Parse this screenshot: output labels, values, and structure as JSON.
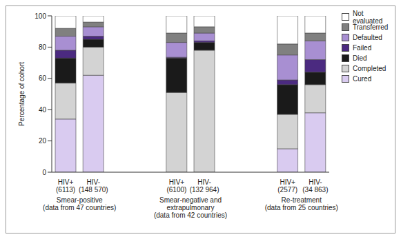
{
  "chart_data": {
    "type": "bar",
    "stacked": true,
    "y_label": "Percentage of cohort",
    "ylim": [
      0,
      100
    ],
    "yticks": [
      0,
      20,
      40,
      60,
      80,
      100
    ],
    "grid": false,
    "legend": "right",
    "categories": [
      "HIV+ (6113)",
      "HIV- (148 570)",
      null,
      null,
      "HIV+ (6100)",
      "HIV- (132 964)",
      null,
      null,
      "HIV+ (2577)",
      "HIV- (34 863)"
    ],
    "group_labels": [
      "Smear-positive\n(data from 47 countries)",
      "Smear-negative and\nextrapulmonary\n(data from 42 countries)",
      "Re-treatment\n(data from 25 countries)"
    ],
    "series": [
      {
        "name": "Cured",
        "color": "#d9cbf0",
        "values": [
          34,
          62,
          null,
          null,
          0,
          0,
          null,
          null,
          15,
          38
        ]
      },
      {
        "name": "Completed",
        "color": "#d3d3d3",
        "values": [
          23,
          18,
          null,
          null,
          51,
          78,
          null,
          null,
          22,
          18
        ]
      },
      {
        "name": "Died",
        "color": "#1a1a1a",
        "values": [
          16,
          5,
          null,
          null,
          22,
          5,
          null,
          null,
          19,
          8
        ]
      },
      {
        "name": "Failed",
        "color": "#4b2a80",
        "values": [
          5,
          2,
          null,
          null,
          0.5,
          1,
          null,
          null,
          3,
          8
        ]
      },
      {
        "name": "Defaulted",
        "color": "#a88fd2",
        "values": [
          9,
          6,
          null,
          null,
          9.5,
          5,
          null,
          null,
          16,
          12
        ]
      },
      {
        "name": "Transferred",
        "color": "#808080",
        "values": [
          5,
          3,
          null,
          null,
          6,
          4,
          null,
          null,
          7,
          5
        ]
      },
      {
        "name": "Not evaluated",
        "color": "#ffffff",
        "values": [
          8,
          4,
          null,
          null,
          11,
          7,
          null,
          null,
          18,
          11
        ]
      }
    ]
  }
}
